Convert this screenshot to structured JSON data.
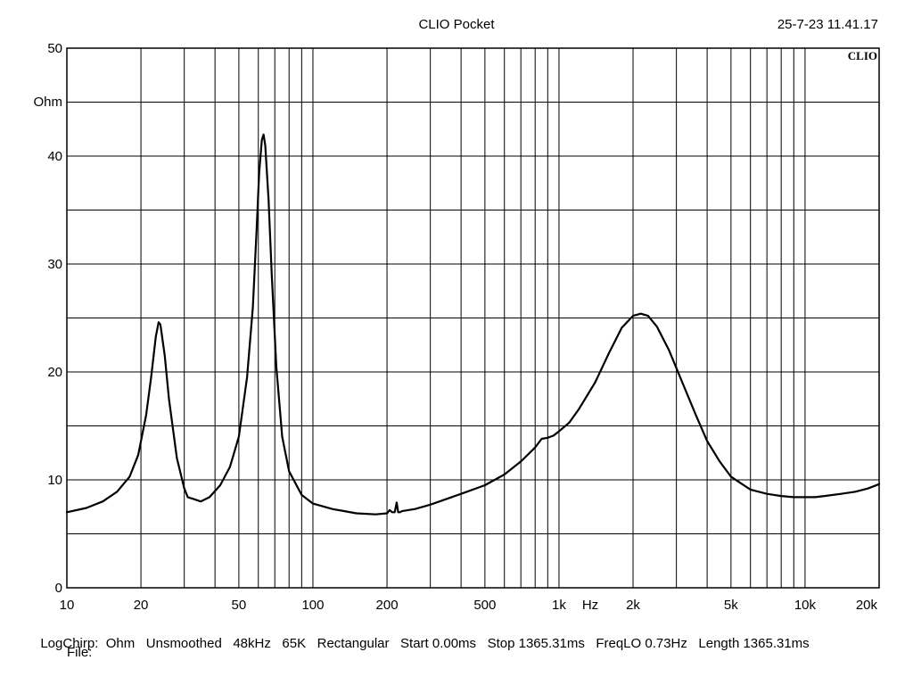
{
  "header": {
    "title": "CLIO Pocket",
    "timestamp": "25-7-23 11.41.17",
    "brand": "CLIO"
  },
  "status": {
    "items": [
      "LogChirp:",
      "Ohm",
      "Unsmoothed",
      "48kHz",
      "65K",
      "Rectangular",
      "Start 0.00ms",
      "Stop 1365.31ms",
      "FreqLO 0.73Hz",
      "Length 1365.31ms"
    ],
    "file_label": "File:"
  },
  "chart_data": {
    "type": "line",
    "title": "CLIO Pocket",
    "xlabel": "Hz",
    "ylabel": "Ohm",
    "xscale": "log",
    "xlim": [
      10,
      20000
    ],
    "ylim": [
      0,
      50
    ],
    "grid": true,
    "x_ticks": [
      {
        "value": 10,
        "label": "10"
      },
      {
        "value": 20,
        "label": "20"
      },
      {
        "value": 50,
        "label": "50"
      },
      {
        "value": 100,
        "label": "100"
      },
      {
        "value": 200,
        "label": "200"
      },
      {
        "value": 500,
        "label": "500"
      },
      {
        "value": 1000,
        "label": "1k"
      },
      {
        "value": 2000,
        "label": "2k"
      },
      {
        "value": 5000,
        "label": "5k"
      },
      {
        "value": 10000,
        "label": "10k"
      },
      {
        "value": 20000,
        "label": "20k"
      }
    ],
    "y_ticks": [
      {
        "value": 0,
        "label": "0"
      },
      {
        "value": 10,
        "label": "10"
      },
      {
        "value": 20,
        "label": "20"
      },
      {
        "value": 30,
        "label": "30"
      },
      {
        "value": 40,
        "label": "40"
      },
      {
        "value": 50,
        "label": "50"
      }
    ],
    "series": [
      {
        "color": "#000000",
        "x": [
          10,
          12,
          14,
          16,
          18,
          19.5,
          21,
          22,
          23,
          23.6,
          24,
          25,
          26,
          28,
          30,
          31,
          33,
          35,
          38,
          42,
          46,
          50,
          54,
          57,
          59,
          60.5,
          62,
          63,
          64,
          66,
          68,
          71,
          75,
          80,
          90,
          100,
          120,
          150,
          180,
          200,
          205,
          210,
          215,
          219,
          222,
          226,
          230,
          260,
          300,
          400,
          500,
          600,
          700,
          800,
          850,
          900,
          950,
          1000,
          1100,
          1200,
          1400,
          1600,
          1800,
          2000,
          2150,
          2300,
          2500,
          2800,
          3200,
          3600,
          4000,
          4500,
          5000,
          6000,
          7000,
          8000,
          9000,
          10000,
          11000,
          12000,
          14000,
          16000,
          18000,
          20000
        ],
        "y": [
          7.0,
          7.4,
          8.0,
          8.9,
          10.3,
          12.3,
          16.0,
          19.5,
          23.3,
          24.6,
          24.4,
          21.5,
          17.5,
          12.0,
          9.2,
          8.4,
          8.2,
          8.0,
          8.4,
          9.5,
          11.2,
          14.0,
          19.5,
          26.0,
          33.0,
          38.5,
          41.5,
          42.0,
          41.0,
          36.0,
          29.0,
          20.5,
          14.0,
          10.8,
          8.6,
          7.8,
          7.3,
          6.9,
          6.8,
          6.9,
          7.2,
          7.0,
          7.0,
          7.9,
          7.0,
          7.0,
          7.1,
          7.3,
          7.7,
          8.7,
          9.5,
          10.5,
          11.7,
          13.0,
          13.8,
          13.9,
          14.1,
          14.5,
          15.3,
          16.5,
          19.0,
          21.8,
          24.1,
          25.2,
          25.4,
          25.2,
          24.2,
          22.0,
          18.8,
          16.0,
          13.6,
          11.7,
          10.3,
          9.1,
          8.7,
          8.5,
          8.4,
          8.4,
          8.4,
          8.5,
          8.7,
          8.9,
          9.2,
          9.6
        ]
      }
    ]
  }
}
